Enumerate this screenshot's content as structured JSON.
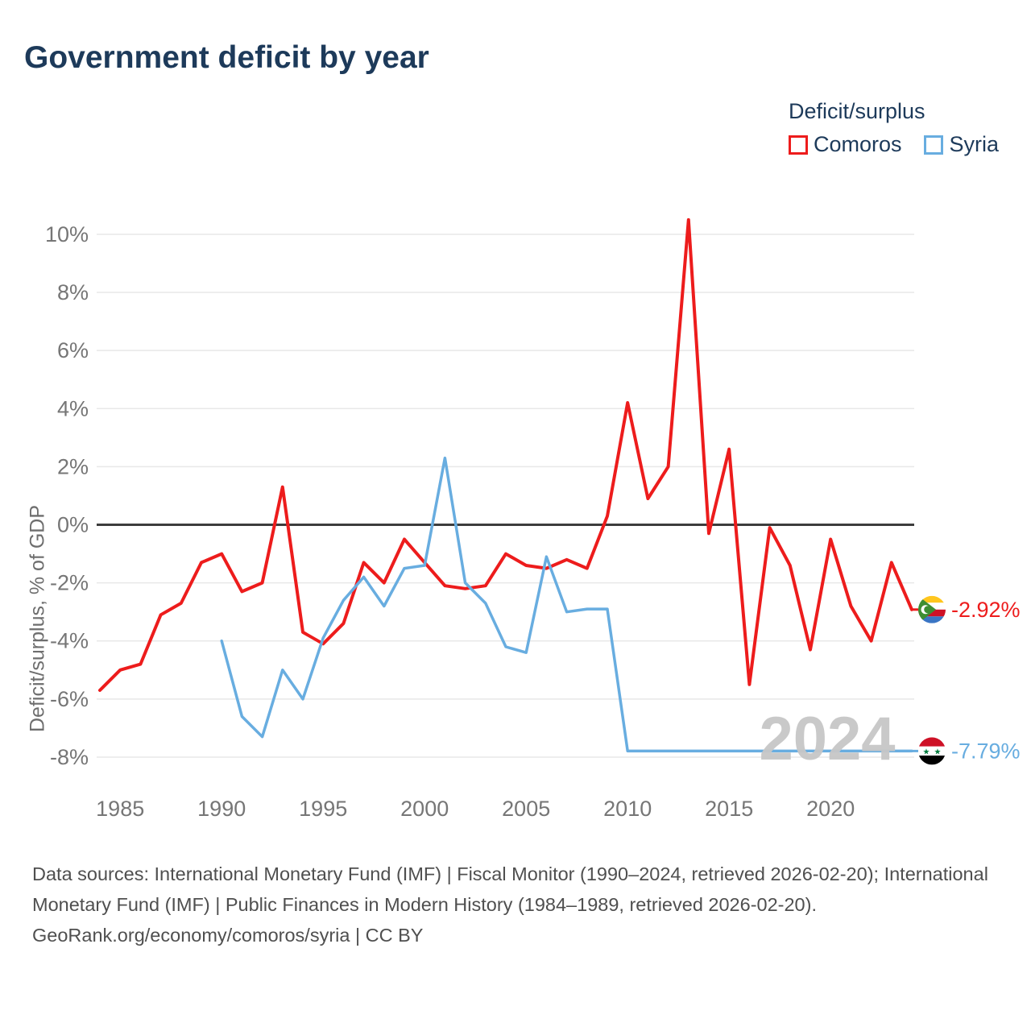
{
  "header": {
    "title": "Government deficit by year"
  },
  "legend": {
    "title": "Deficit/surplus",
    "items": [
      {
        "label": "Comoros",
        "color": "#ed1c1c"
      },
      {
        "label": "Syria",
        "color": "#68ade0"
      }
    ]
  },
  "y_axis_title": "Deficit/surplus, % of GDP",
  "watermark": "2024",
  "chart_data": {
    "type": "line",
    "title": "Government deficit by year",
    "ylabel": "Deficit/surplus, % of GDP",
    "xlim": [
      1984,
      2024
    ],
    "ylim": [
      -8.8,
      11
    ],
    "grid": true,
    "legend_position": "top-right",
    "zero_line": true,
    "x_ticks": [
      1985,
      1990,
      1995,
      2000,
      2005,
      2010,
      2015,
      2020
    ],
    "y_ticks": [
      {
        "value": 10,
        "label": "10%"
      },
      {
        "value": 8,
        "label": "8%"
      },
      {
        "value": 6,
        "label": "6%"
      },
      {
        "value": 4,
        "label": "4%"
      },
      {
        "value": 2,
        "label": "2%"
      },
      {
        "value": 0,
        "label": "0%"
      },
      {
        "value": -2,
        "label": "-2%"
      },
      {
        "value": -4,
        "label": "-4%"
      },
      {
        "value": -6,
        "label": "-6%"
      },
      {
        "value": -8,
        "label": "-8%"
      }
    ],
    "x": [
      1984,
      1985,
      1986,
      1987,
      1988,
      1989,
      1990,
      1991,
      1992,
      1993,
      1994,
      1995,
      1996,
      1997,
      1998,
      1999,
      2000,
      2001,
      2002,
      2003,
      2004,
      2005,
      2006,
      2007,
      2008,
      2009,
      2010,
      2011,
      2012,
      2013,
      2014,
      2015,
      2016,
      2017,
      2018,
      2019,
      2020,
      2021,
      2022,
      2023,
      2024
    ],
    "series": [
      {
        "name": "Comoros",
        "color": "#ed1c1c",
        "width": 4,
        "values": [
          -5.7,
          -5.0,
          -4.8,
          -3.1,
          -2.7,
          -1.3,
          -1.0,
          -2.3,
          -2.0,
          1.3,
          -3.7,
          -4.1,
          -3.4,
          -1.3,
          -2.0,
          -0.5,
          -1.3,
          -2.1,
          -2.2,
          -2.1,
          -1.0,
          -1.4,
          -1.5,
          -1.2,
          -1.5,
          0.3,
          4.2,
          0.9,
          2.0,
          10.5,
          -0.3,
          2.6,
          -5.5,
          -0.1,
          -1.4,
          -4.3,
          -0.5,
          -2.8,
          -4.0,
          -1.3,
          -2.92
        ]
      },
      {
        "name": "Syria",
        "color": "#68ade0",
        "width": 3.5,
        "values": [
          null,
          null,
          null,
          null,
          null,
          null,
          -4.0,
          -6.6,
          -7.3,
          -5.0,
          -6.0,
          -3.9,
          -2.6,
          -1.8,
          -2.8,
          -1.5,
          -1.4,
          2.3,
          -2.0,
          -2.7,
          -4.2,
          -4.4,
          -1.1,
          -3.0,
          -2.9,
          -2.9,
          -7.79,
          -7.79,
          -7.79,
          -7.79,
          -7.79,
          -7.79,
          -7.79,
          -7.79,
          -7.79,
          -7.79,
          -7.79,
          -7.79,
          -7.79,
          -7.79,
          -7.79
        ]
      }
    ],
    "end_labels": [
      {
        "series": "Comoros",
        "label": "-2.92%",
        "value": -2.92,
        "color": "#ed1c1c",
        "flag": "comoros"
      },
      {
        "series": "Syria",
        "label": "-7.79%",
        "value": -7.79,
        "color": "#68ade0",
        "flag": "syria"
      }
    ]
  },
  "footer": {
    "sources": "Data sources: International Monetary Fund (IMF) | Fiscal Monitor (1990–2024, retrieved 2026-02-20); International Monetary Fund (IMF) | Public Finances in Modern History (1984–1989, retrieved 2026-02-20).",
    "attribution": "GeoRank.org/economy/comoros/syria | CC BY"
  }
}
